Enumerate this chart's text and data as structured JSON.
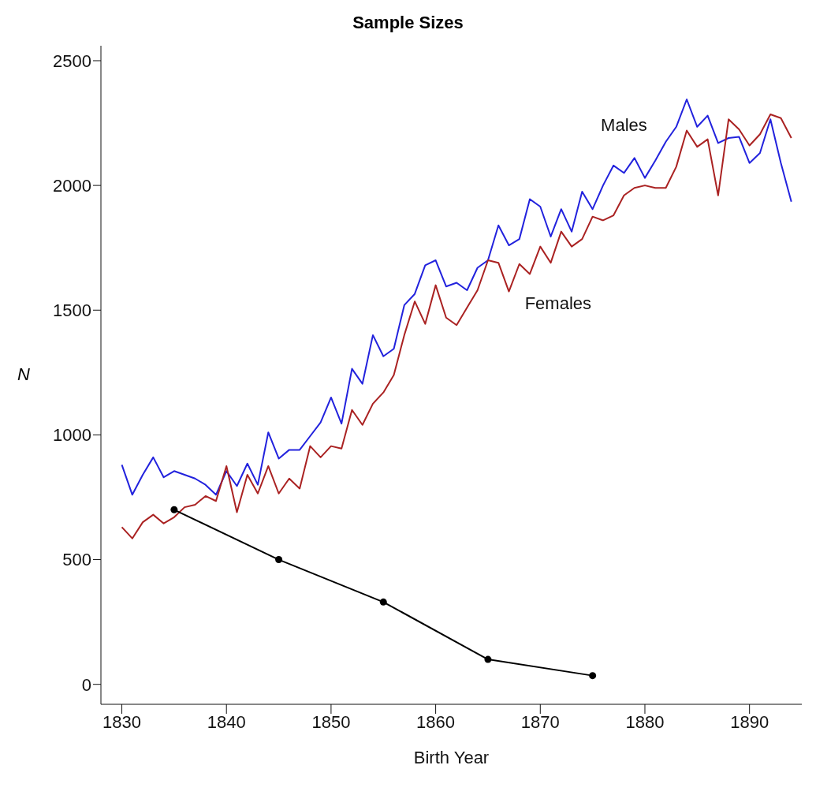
{
  "chart_data": {
    "type": "line",
    "title": "Sample Sizes",
    "xlabel": "Birth Year",
    "ylabel": "N",
    "x": [
      1830,
      1831,
      1832,
      1833,
      1834,
      1835,
      1836,
      1837,
      1838,
      1839,
      1840,
      1841,
      1842,
      1843,
      1844,
      1845,
      1846,
      1847,
      1848,
      1849,
      1850,
      1851,
      1852,
      1853,
      1854,
      1855,
      1856,
      1857,
      1858,
      1859,
      1860,
      1861,
      1862,
      1863,
      1864,
      1865,
      1866,
      1867,
      1868,
      1869,
      1870,
      1871,
      1872,
      1873,
      1874,
      1875,
      1876,
      1877,
      1878,
      1879,
      1880,
      1881,
      1882,
      1883,
      1884,
      1885,
      1886,
      1887,
      1888,
      1889,
      1890,
      1891,
      1892,
      1893,
      1894
    ],
    "series": [
      {
        "name": "Males",
        "color": "#2222dd",
        "values": [
          880,
          760,
          840,
          910,
          830,
          855,
          840,
          825,
          800,
          760,
          855,
          795,
          885,
          800,
          1010,
          905,
          940,
          940,
          995,
          1050,
          1150,
          1045,
          1265,
          1205,
          1400,
          1315,
          1345,
          1520,
          1565,
          1680,
          1700,
          1595,
          1610,
          1580,
          1670,
          1700,
          1840,
          1760,
          1785,
          1945,
          1915,
          1795,
          1905,
          1815,
          1975,
          1905,
          2000,
          2080,
          2050,
          2110,
          2030,
          2100,
          2175,
          2235,
          2345,
          2235,
          2280,
          2170,
          2190,
          2195,
          2090,
          2130,
          2265,
          2090,
          1935
        ]
      },
      {
        "name": "Females",
        "color": "#aa2222",
        "values": [
          630,
          585,
          650,
          680,
          645,
          670,
          710,
          720,
          755,
          735,
          875,
          690,
          840,
          765,
          875,
          765,
          825,
          785,
          955,
          910,
          955,
          945,
          1100,
          1040,
          1125,
          1170,
          1240,
          1400,
          1535,
          1445,
          1600,
          1470,
          1440,
          1510,
          1580,
          1700,
          1690,
          1575,
          1685,
          1645,
          1755,
          1690,
          1815,
          1755,
          1785,
          1875,
          1860,
          1880,
          1960,
          1990,
          2000,
          1990,
          1990,
          2075,
          2220,
          2155,
          2185,
          1960,
          2265,
          2225,
          2160,
          2205,
          2285,
          2270,
          2190
        ]
      },
      {
        "color": "#000000",
        "x": [
          1835,
          1845,
          1855,
          1865,
          1875
        ],
        "values": [
          700,
          500,
          330,
          100,
          35
        ],
        "marker": "circle"
      }
    ],
    "xlim": [
      1828,
      1895
    ],
    "xticks": [
      1830,
      1840,
      1850,
      1860,
      1870,
      1880,
      1890
    ],
    "ylim": [
      -80,
      2560
    ],
    "yticks": [
      0,
      500,
      1000,
      1500,
      2000,
      2500
    ],
    "grid": false,
    "legend": false
  }
}
